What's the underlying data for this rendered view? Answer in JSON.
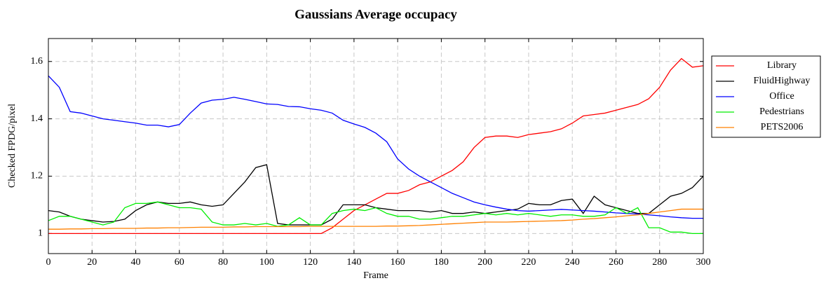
{
  "chart_data": {
    "type": "line",
    "title": "Gaussians Average occupacy",
    "xlabel": "Frame",
    "ylabel": "Checked FPDG/pixel",
    "x": [
      0,
      5,
      10,
      15,
      20,
      25,
      30,
      35,
      40,
      45,
      50,
      55,
      60,
      65,
      70,
      75,
      80,
      85,
      90,
      95,
      100,
      105,
      110,
      115,
      120,
      125,
      130,
      135,
      140,
      145,
      150,
      155,
      160,
      165,
      170,
      175,
      180,
      185,
      190,
      195,
      200,
      205,
      210,
      215,
      220,
      225,
      230,
      235,
      240,
      245,
      250,
      255,
      260,
      265,
      270,
      275,
      280,
      285,
      290,
      295,
      300
    ],
    "series": [
      {
        "name": "Library",
        "color": "#ff0000",
        "values": [
          1,
          1,
          1,
          1,
          1,
          1,
          1,
          1,
          1,
          1,
          1,
          1,
          1,
          1,
          1,
          1,
          1,
          1,
          1,
          1,
          1,
          1,
          1,
          1,
          1,
          1,
          1.02,
          1.05,
          1.08,
          1.1,
          1.12,
          1.14,
          1.14,
          1.15,
          1.17,
          1.18,
          1.2,
          1.22,
          1.25,
          1.3,
          1.335,
          1.34,
          1.34,
          1.335,
          1.345,
          1.35,
          1.355,
          1.365,
          1.385,
          1.41,
          1.415,
          1.42,
          1.43,
          1.44,
          1.45,
          1.47,
          1.51,
          1.57,
          1.61,
          1.58,
          1.585
        ]
      },
      {
        "name": "FluidHighway",
        "color": "#000000",
        "values": [
          1.08,
          1.075,
          1.06,
          1.05,
          1.045,
          1.04,
          1.042,
          1.05,
          1.08,
          1.1,
          1.11,
          1.105,
          1.105,
          1.11,
          1.1,
          1.095,
          1.1,
          1.14,
          1.18,
          1.23,
          1.24,
          1.035,
          1.03,
          1.03,
          1.03,
          1.03,
          1.05,
          1.1,
          1.1,
          1.1,
          1.09,
          1.085,
          1.08,
          1.08,
          1.08,
          1.075,
          1.08,
          1.07,
          1.07,
          1.075,
          1.07,
          1.075,
          1.08,
          1.085,
          1.105,
          1.1,
          1.1,
          1.115,
          1.12,
          1.07,
          1.13,
          1.1,
          1.09,
          1.08,
          1.07,
          1.07,
          1.1,
          1.13,
          1.14,
          1.16,
          1.2
        ]
      },
      {
        "name": "Office",
        "color": "#0000ff",
        "values": [
          1.55,
          1.51,
          1.425,
          1.42,
          1.41,
          1.4,
          1.395,
          1.39,
          1.385,
          1.378,
          1.378,
          1.372,
          1.38,
          1.42,
          1.455,
          1.465,
          1.468,
          1.475,
          1.468,
          1.46,
          1.452,
          1.45,
          1.443,
          1.442,
          1.435,
          1.43,
          1.42,
          1.395,
          1.382,
          1.37,
          1.35,
          1.32,
          1.26,
          1.225,
          1.2,
          1.18,
          1.16,
          1.14,
          1.125,
          1.11,
          1.1,
          1.092,
          1.085,
          1.08,
          1.078,
          1.08,
          1.082,
          1.084,
          1.082,
          1.08,
          1.078,
          1.075,
          1.072,
          1.07,
          1.068,
          1.065,
          1.062,
          1.058,
          1.055,
          1.053,
          1.053
        ]
      },
      {
        "name": "Pedestrians",
        "color": "#00ee00",
        "values": [
          1.045,
          1.06,
          1.06,
          1.05,
          1.04,
          1.03,
          1.04,
          1.09,
          1.105,
          1.105,
          1.11,
          1.1,
          1.09,
          1.09,
          1.085,
          1.04,
          1.03,
          1.03,
          1.035,
          1.03,
          1.035,
          1.025,
          1.03,
          1.055,
          1.03,
          1.03,
          1.07,
          1.08,
          1.085,
          1.08,
          1.09,
          1.07,
          1.06,
          1.06,
          1.05,
          1.05,
          1.055,
          1.06,
          1.06,
          1.065,
          1.07,
          1.065,
          1.07,
          1.065,
          1.07,
          1.065,
          1.06,
          1.065,
          1.065,
          1.06,
          1.06,
          1.065,
          1.09,
          1.07,
          1.09,
          1.02,
          1.02,
          1.005,
          1.005,
          1,
          1
        ]
      },
      {
        "name": "PETS2006",
        "color": "#ff8000",
        "values": [
          1.015,
          1.015,
          1.016,
          1.016,
          1.017,
          1.017,
          1.018,
          1.018,
          1.018,
          1.019,
          1.019,
          1.02,
          1.02,
          1.021,
          1.022,
          1.022,
          1.022,
          1.023,
          1.023,
          1.024,
          1.024,
          1.024,
          1.024,
          1.024,
          1.025,
          1.025,
          1.025,
          1.025,
          1.025,
          1.025,
          1.025,
          1.026,
          1.026,
          1.027,
          1.028,
          1.03,
          1.032,
          1.034,
          1.036,
          1.038,
          1.04,
          1.04,
          1.04,
          1.041,
          1.042,
          1.043,
          1.044,
          1.045,
          1.047,
          1.05,
          1.052,
          1.055,
          1.058,
          1.062,
          1.065,
          1.07,
          1.075,
          1.08,
          1.085,
          1.085,
          1.085
        ]
      }
    ],
    "xlim": [
      0,
      300
    ],
    "ylim": [
      0.93,
      1.68
    ],
    "xticks": [
      0,
      20,
      40,
      60,
      80,
      100,
      120,
      140,
      160,
      180,
      200,
      220,
      240,
      260,
      280,
      300
    ],
    "yticks": [
      1,
      1.2,
      1.4,
      1.6
    ],
    "grid": true,
    "legend": "outside-right"
  }
}
